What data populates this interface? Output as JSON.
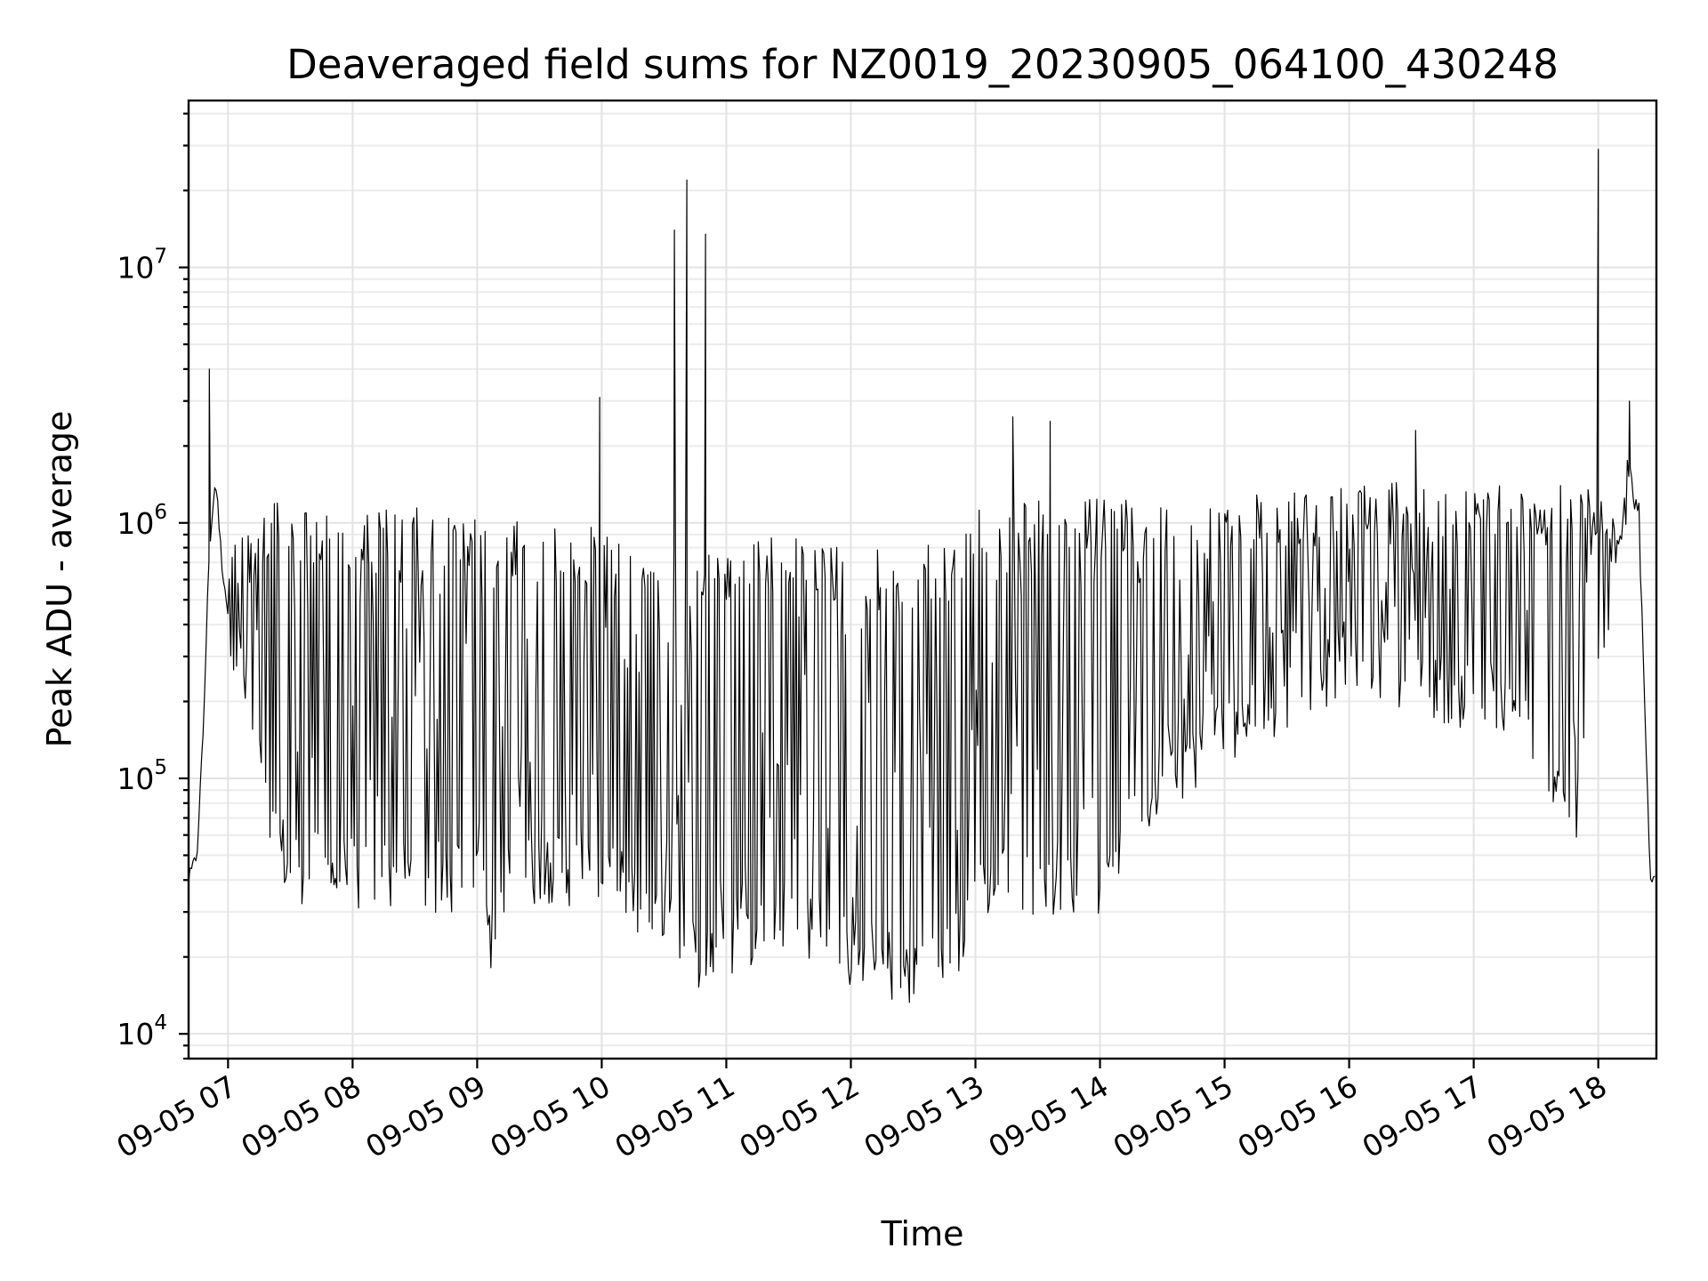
{
  "chart_data": {
    "type": "line",
    "title": "Deaveraged field sums for NZ0019_20230905_064100_430248",
    "xlabel": "Time",
    "ylabel": "Peak ADU - average",
    "yscale": "log",
    "ylim": [
      8000,
      45000000
    ],
    "xlim": [
      "2023-09-05 06:41",
      "2023-09-05 18:28"
    ],
    "grid": true,
    "color": "#000000",
    "x_ticks": [
      "09-05 07",
      "09-05 08",
      "09-05 09",
      "09-05 10",
      "09-05 11",
      "09-05 12",
      "09-05 13",
      "09-05 14",
      "09-05 15",
      "09-05 16",
      "09-05 17",
      "09-05 18"
    ],
    "y_ticks": [
      {
        "value": 10000,
        "base": "10",
        "exp": "4"
      },
      {
        "value": 100000,
        "base": "10",
        "exp": "5"
      },
      {
        "value": 1000000,
        "base": "10",
        "exp": "6"
      },
      {
        "value": 10000000,
        "base": "10",
        "exp": "7"
      }
    ],
    "series": [
      {
        "x": [
          "2023-09-05 06:41",
          "2023-09-05 06:45",
          "2023-09-05 06:48",
          "2023-09-05 06:51",
          "2023-09-05 06:54",
          "2023-09-05 06:57",
          "2023-09-05 07:00",
          "2023-09-05 07:05",
          "2023-09-05 07:10",
          "2023-09-05 07:15",
          "2023-09-05 07:20",
          "2023-09-05 07:30",
          "2023-09-05 07:45",
          "2023-09-05 08:00",
          "2023-09-05 08:30",
          "2023-09-05 09:00",
          "2023-09-05 09:08",
          "2023-09-05 09:15",
          "2023-09-05 09:30",
          "2023-09-05 10:00",
          "2023-09-05 10:30",
          "2023-09-05 10:45",
          "2023-09-05 11:00",
          "2023-09-05 11:30",
          "2023-09-05 11:45",
          "2023-09-05 12:00",
          "2023-09-05 12:30",
          "2023-09-05 12:50",
          "2023-09-05 13:00",
          "2023-09-05 13:30",
          "2023-09-05 14:00",
          "2023-09-05 14:30",
          "2023-09-05 15:00",
          "2023-09-05 15:30",
          "2023-09-05 16:00",
          "2023-09-05 16:30",
          "2023-09-05 17:00",
          "2023-09-05 17:30",
          "2023-09-05 17:50",
          "2023-09-05 18:00",
          "2023-09-05 18:05",
          "2023-09-05 18:10",
          "2023-09-05 18:15",
          "2023-09-05 18:20",
          "2023-09-05 18:25",
          "2023-09-05 18:28"
        ],
        "base": [
          40000,
          50000,
          150000,
          800000,
          1500000,
          700000,
          450000,
          300000,
          200000,
          110000,
          60000,
          45000,
          42000,
          40000,
          40000,
          38000,
          22000,
          35000,
          45000,
          40000,
          25000,
          20000,
          22000,
          30000,
          25000,
          20000,
          17000,
          20000,
          38000,
          40000,
          40000,
          100000,
          150000,
          200000,
          300000,
          250000,
          200000,
          150000,
          70000,
          250000,
          400000,
          700000,
          1500000,
          900000,
          40000,
          45000
        ],
        "top": [
          40000,
          50000,
          150000,
          800000,
          1500000,
          700000,
          600000,
          1200000,
          1200000,
          1200000,
          1200000,
          1200000,
          1150000,
          1150000,
          1150000,
          1050000,
          900000,
          1000000,
          1050000,
          950000,
          850000,
          850000,
          850000,
          900000,
          850000,
          800000,
          800000,
          850000,
          1200000,
          1250000,
          1250000,
          1250000,
          1300000,
          1300000,
          1400000,
          1450000,
          1450000,
          1500000,
          1500000,
          1500000,
          1200000,
          900000,
          2200000,
          1200000,
          45000,
          48000
        ],
        "peaks": [
          {
            "x": "2023-09-05 06:51",
            "y": 4000000
          },
          {
            "x": "2023-09-05 09:59",
            "y": 3100000
          },
          {
            "x": "2023-09-05 10:35",
            "y": 14000000
          },
          {
            "x": "2023-09-05 10:41",
            "y": 22000000
          },
          {
            "x": "2023-09-05 10:50",
            "y": 13500000
          },
          {
            "x": "2023-09-05 13:18",
            "y": 2600000
          },
          {
            "x": "2023-09-05 13:36",
            "y": 2500000
          },
          {
            "x": "2023-09-05 16:32",
            "y": 2300000
          },
          {
            "x": "2023-09-05 18:00",
            "y": 29000000
          },
          {
            "x": "2023-09-05 18:15",
            "y": 3000000
          }
        ]
      }
    ]
  }
}
